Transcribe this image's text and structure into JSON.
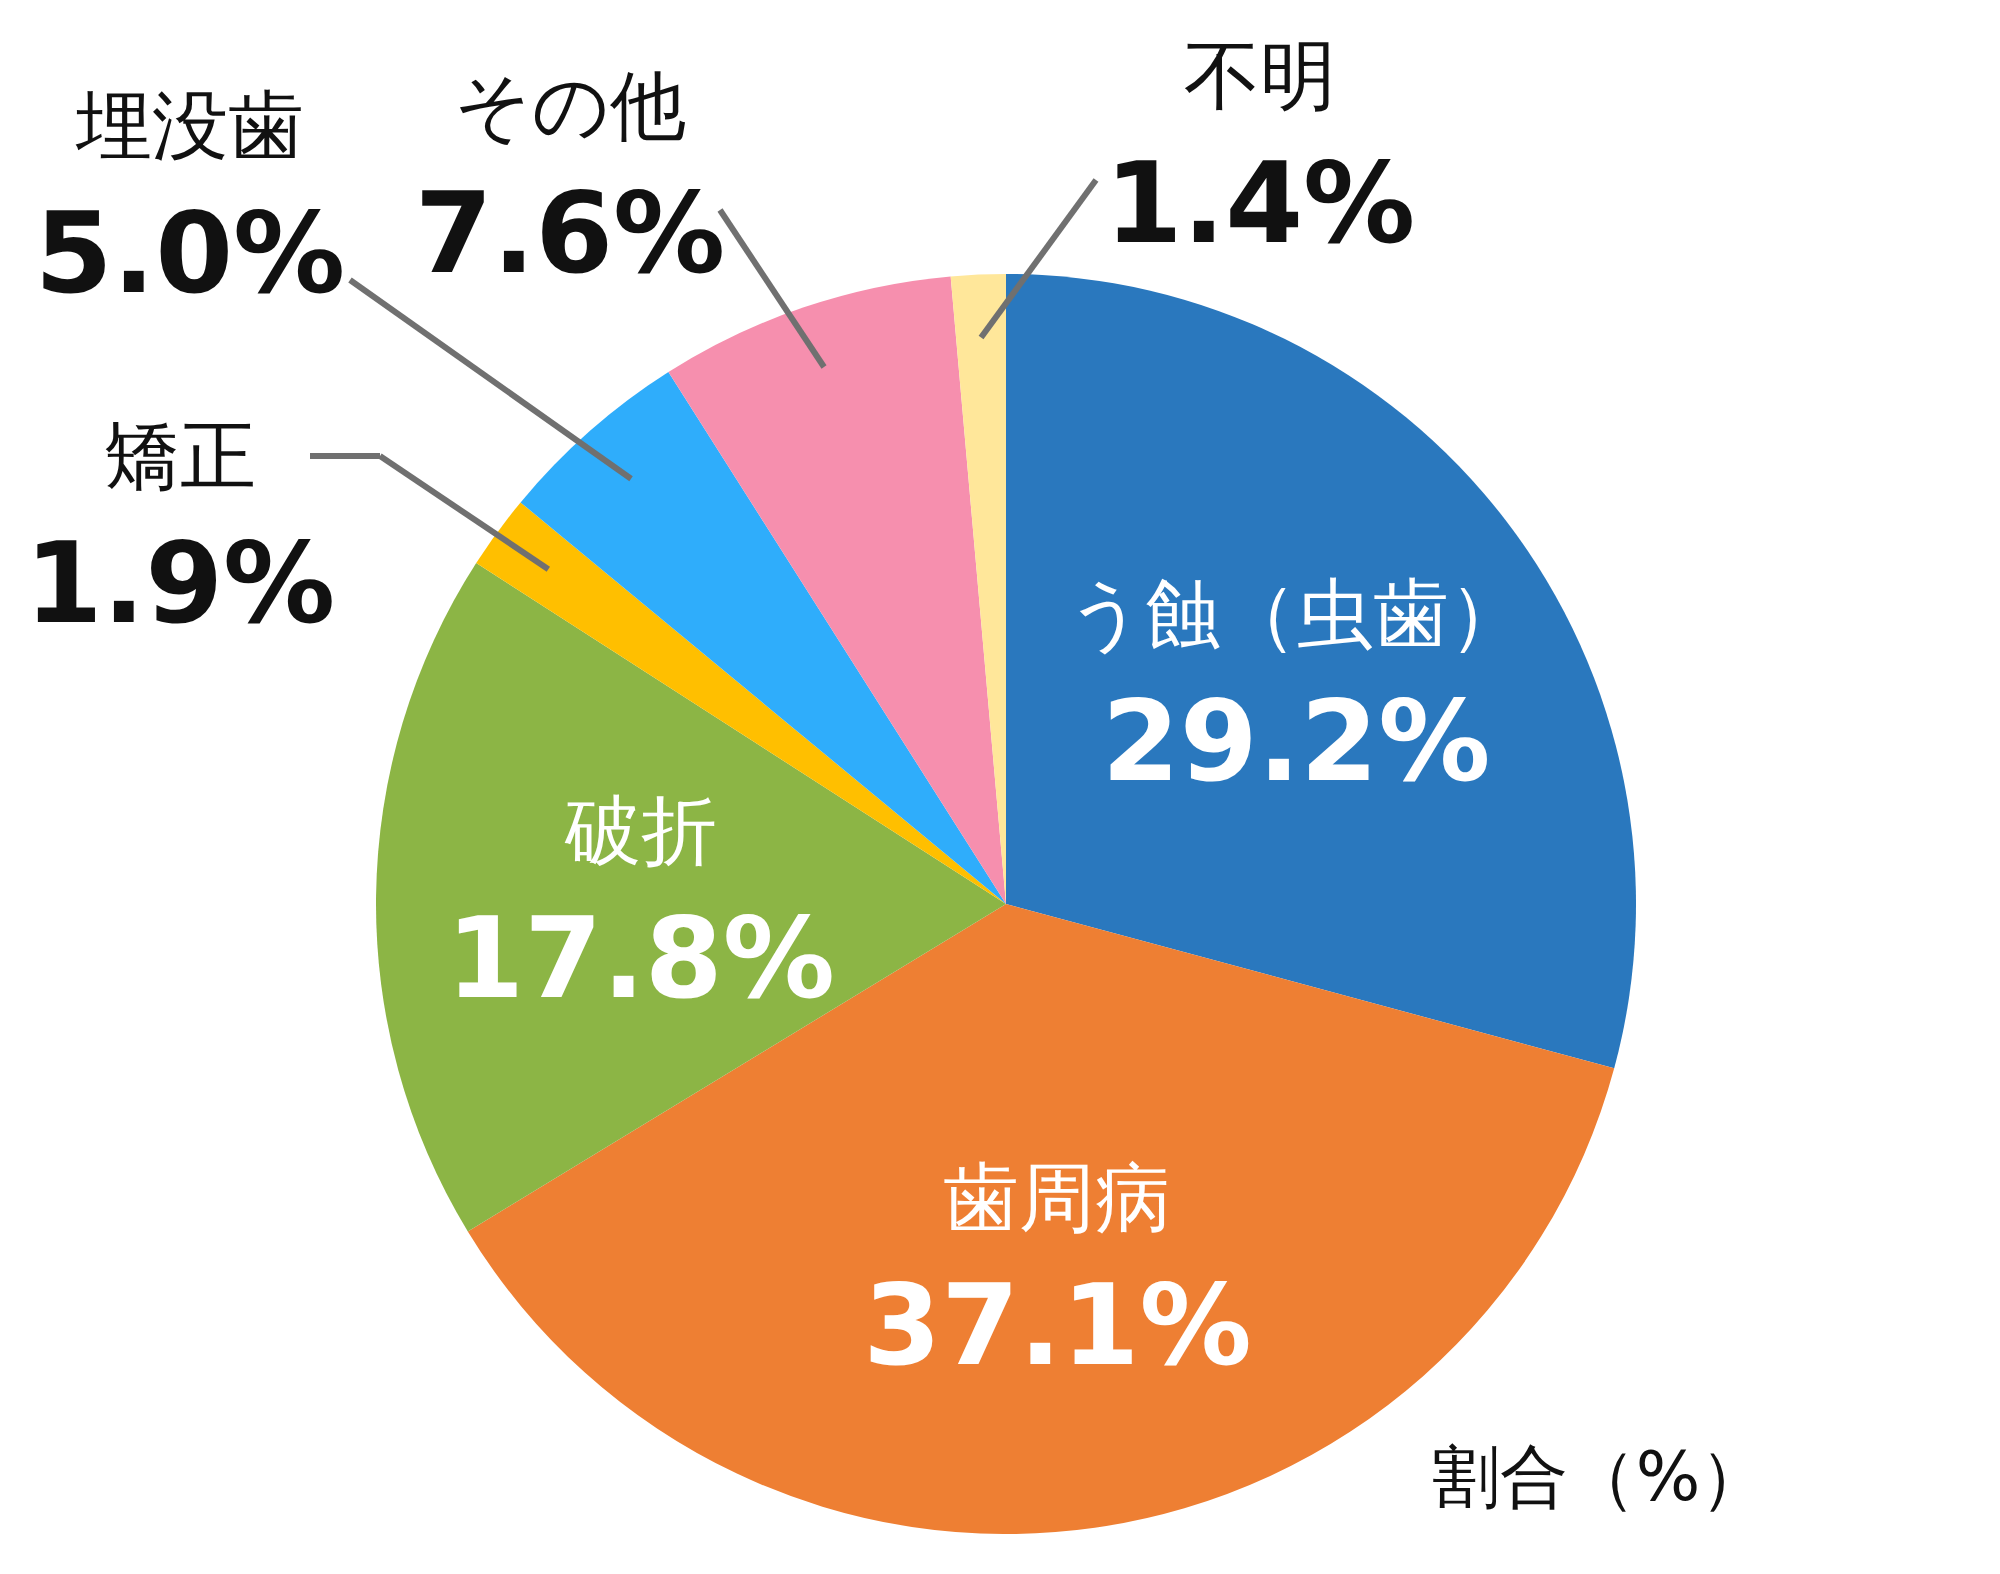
{
  "chart_data": {
    "type": "pie",
    "categories": [
      "う蝕（虫歯）",
      "歯周病",
      "破折",
      "矯正",
      "埋没歯",
      "その他",
      "不明"
    ],
    "values": [
      29.2,
      37.1,
      17.8,
      1.9,
      5.0,
      7.6,
      1.4
    ],
    "colors": [
      "#2a78be",
      "#ee7f33",
      "#8cb545",
      "#ffbf00",
      "#2fadfb",
      "#f68fae",
      "#ffe79a"
    ],
    "value_labels": [
      "29.2%",
      "37.1%",
      "17.8%",
      "1.9%",
      "5.0%",
      "7.6%",
      "1.4%"
    ],
    "annotations": [
      "割合（%）"
    ]
  }
}
